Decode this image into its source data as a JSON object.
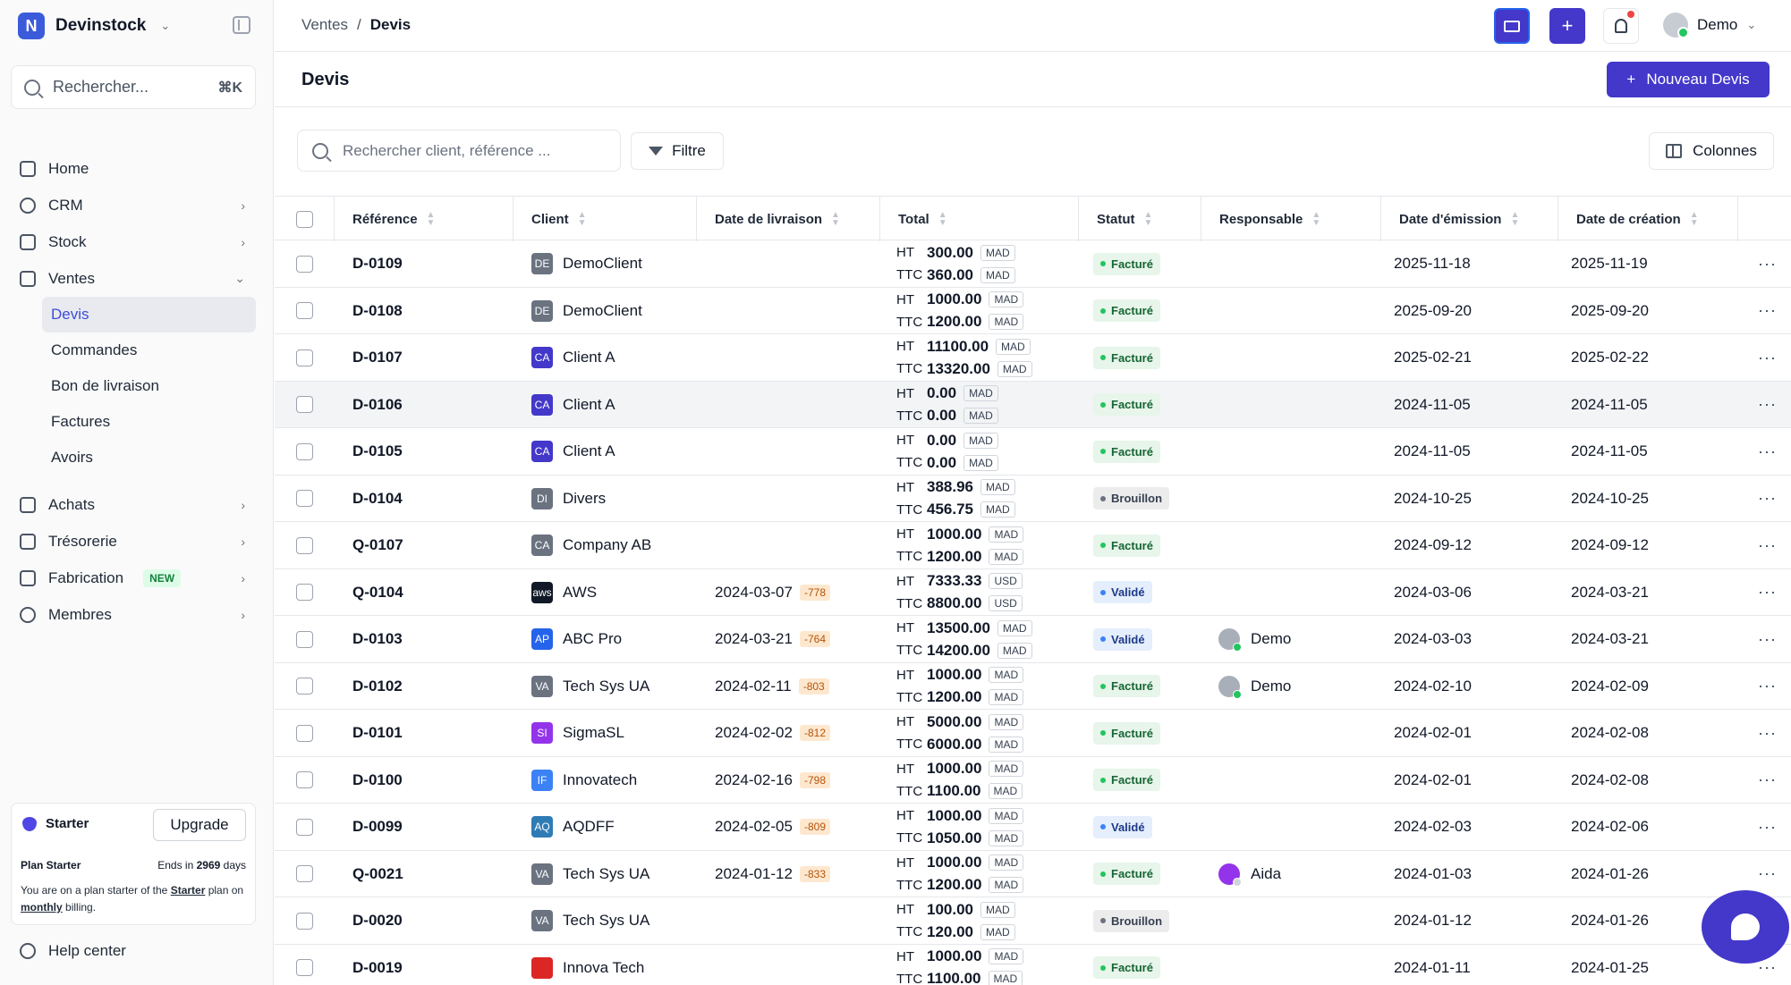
{
  "sidebar": {
    "brand": "Devinstock",
    "search_placeholder": "Rechercher...",
    "search_shortcut": "⌘K",
    "nav": [
      {
        "label": "Home",
        "icon": "home-icon"
      },
      {
        "label": "CRM",
        "icon": "crm-icon"
      },
      {
        "label": "Stock",
        "icon": "box-icon"
      },
      {
        "label": "Ventes",
        "icon": "sales-icon"
      }
    ],
    "sales_sub": [
      "Devis",
      "Commandes",
      "Bon de livraison",
      "Factures",
      "Avoirs"
    ],
    "nav2": [
      {
        "label": "Achats",
        "icon": "purchase-icon"
      },
      {
        "label": "Trésorerie",
        "icon": "treasury-icon"
      },
      {
        "label": "Fabrication",
        "icon": "factory-icon"
      },
      {
        "label": "Membres",
        "icon": "members-icon"
      }
    ],
    "new_badge": "NEW",
    "plan": {
      "name": "Starter",
      "upgrade": "Upgrade",
      "label": "Plan Starter",
      "ends_prefix": "Ends in",
      "ends_days": "2969",
      "ends_suffix": "days",
      "text_1": "You are on a plan starter of the",
      "text_plan": "Starter",
      "text_2": "plan on",
      "text_billing": "monthly",
      "text_3": "billing."
    },
    "help": "Help center"
  },
  "topbar": {
    "breadcrumb": [
      "Ventes",
      "/",
      "Devis"
    ],
    "user": "Demo"
  },
  "page": {
    "title": "Devis",
    "new_button": "Nouveau Devis",
    "search_placeholder": "Rechercher client, référence ...",
    "filter": "Filtre",
    "columns": "Colonnes"
  },
  "table": {
    "headers": [
      "Référence",
      "Client",
      "Date de livraison",
      "Total",
      "Statut",
      "Responsable",
      "Date d'émission",
      "Date de création"
    ],
    "rows": [
      {
        "ref": "D-0109",
        "client": "DemoClient",
        "ci": "DE",
        "cc": "#6b7280",
        "livr": "",
        "late": "",
        "ht": "300.00",
        "ttc": "360.00",
        "cur": "MAD",
        "status": "Facturé",
        "st": "f",
        "resp": "",
        "emi": "2025-11-18",
        "cre": "2025-11-19"
      },
      {
        "ref": "D-0108",
        "client": "DemoClient",
        "ci": "DE",
        "cc": "#6b7280",
        "livr": "",
        "late": "",
        "ht": "1000.00",
        "ttc": "1200.00",
        "cur": "MAD",
        "status": "Facturé",
        "st": "f",
        "resp": "",
        "emi": "2025-09-20",
        "cre": "2025-09-20"
      },
      {
        "ref": "D-0107",
        "client": "Client A",
        "ci": "CA",
        "cc": "#4338ca",
        "livr": "",
        "late": "",
        "ht": "11100.00",
        "ttc": "13320.00",
        "cur": "MAD",
        "status": "Facturé",
        "st": "f",
        "resp": "",
        "emi": "2025-02-21",
        "cre": "2025-02-22"
      },
      {
        "ref": "D-0106",
        "client": "Client A",
        "ci": "CA",
        "cc": "#4338ca",
        "livr": "",
        "late": "",
        "ht": "0.00",
        "ttc": "0.00",
        "cur": "MAD",
        "status": "Facturé",
        "st": "f",
        "resp": "",
        "emi": "2024-11-05",
        "cre": "2024-11-05"
      },
      {
        "ref": "D-0105",
        "client": "Client A",
        "ci": "CA",
        "cc": "#4338ca",
        "livr": "",
        "late": "",
        "ht": "0.00",
        "ttc": "0.00",
        "cur": "MAD",
        "status": "Facturé",
        "st": "f",
        "resp": "",
        "emi": "2024-11-05",
        "cre": "2024-11-05"
      },
      {
        "ref": "D-0104",
        "client": "Divers",
        "ci": "DI",
        "cc": "#6b7280",
        "livr": "",
        "late": "",
        "ht": "388.96",
        "ttc": "456.75",
        "cur": "MAD",
        "status": "Brouillon",
        "st": "b",
        "resp": "",
        "emi": "2024-10-25",
        "cre": "2024-10-25"
      },
      {
        "ref": "Q-0107",
        "client": "Company AB",
        "ci": "CA",
        "cc": "#6b7280",
        "livr": "",
        "late": "",
        "ht": "1000.00",
        "ttc": "1200.00",
        "cur": "MAD",
        "status": "Facturé",
        "st": "f",
        "resp": "",
        "emi": "2024-09-12",
        "cre": "2024-09-12"
      },
      {
        "ref": "Q-0104",
        "client": "AWS",
        "ci": "aws",
        "cc": "#111827",
        "livr": "2024-03-07",
        "late": "-778",
        "ht": "7333.33",
        "ttc": "8800.00",
        "cur": "USD",
        "status": "Validé",
        "st": "v",
        "resp": "",
        "emi": "2024-03-06",
        "cre": "2024-03-21"
      },
      {
        "ref": "D-0103",
        "client": "ABC Pro",
        "ci": "AP",
        "cc": "#2563eb",
        "livr": "2024-03-21",
        "late": "-764",
        "ht": "13500.00",
        "ttc": "14200.00",
        "cur": "MAD",
        "status": "Validé",
        "st": "v",
        "resp": "Demo",
        "emi": "2024-03-03",
        "cre": "2024-03-21"
      },
      {
        "ref": "D-0102",
        "client": "Tech Sys UA",
        "ci": "VA",
        "cc": "#6b7280",
        "livr": "2024-02-11",
        "late": "-803",
        "ht": "1000.00",
        "ttc": "1200.00",
        "cur": "MAD",
        "status": "Facturé",
        "st": "f",
        "resp": "Demo",
        "emi": "2024-02-10",
        "cre": "2024-02-09"
      },
      {
        "ref": "D-0101",
        "client": "SigmaSL",
        "ci": "SI",
        "cc": "#9333ea",
        "livr": "2024-02-02",
        "late": "-812",
        "ht": "5000.00",
        "ttc": "6000.00",
        "cur": "MAD",
        "status": "Facturé",
        "st": "f",
        "resp": "",
        "emi": "2024-02-01",
        "cre": "2024-02-08"
      },
      {
        "ref": "D-0100",
        "client": "Innovatech",
        "ci": "IF",
        "cc": "#3b82f6",
        "livr": "2024-02-16",
        "late": "-798",
        "ht": "1000.00",
        "ttc": "1100.00",
        "cur": "MAD",
        "status": "Facturé",
        "st": "f",
        "resp": "",
        "emi": "2024-02-01",
        "cre": "2024-02-08"
      },
      {
        "ref": "D-0099",
        "client": "AQDFF",
        "ci": "AQ",
        "cc": "#2f7bb6",
        "livr": "2024-02-05",
        "late": "-809",
        "ht": "1000.00",
        "ttc": "1050.00",
        "cur": "MAD",
        "status": "Validé",
        "st": "v",
        "resp": "",
        "emi": "2024-02-03",
        "cre": "2024-02-06"
      },
      {
        "ref": "Q-0021",
        "client": "Tech Sys UA",
        "ci": "VA",
        "cc": "#6b7280",
        "livr": "2024-01-12",
        "late": "-833",
        "ht": "1000.00",
        "ttc": "1200.00",
        "cur": "MAD",
        "status": "Facturé",
        "st": "f",
        "resp": "Aida",
        "emi": "2024-01-03",
        "cre": "2024-01-26"
      },
      {
        "ref": "D-0020",
        "client": "Tech Sys UA",
        "ci": "VA",
        "cc": "#6b7280",
        "livr": "",
        "late": "",
        "ht": "100.00",
        "ttc": "120.00",
        "cur": "MAD",
        "status": "Brouillon",
        "st": "b",
        "resp": "",
        "emi": "2024-01-12",
        "cre": "2024-01-26"
      },
      {
        "ref": "D-0019",
        "client": "Innova Tech",
        "ci": "",
        "cc": "#dc2626",
        "livr": "",
        "late": "",
        "ht": "1000.00",
        "ttc": "1100.00",
        "cur": "MAD",
        "status": "Facturé",
        "st": "f",
        "resp": "",
        "emi": "2024-01-11",
        "cre": "2024-01-25"
      }
    ],
    "ht_label": "HT",
    "ttc_label": "TTC",
    "row_menu": "···"
  }
}
